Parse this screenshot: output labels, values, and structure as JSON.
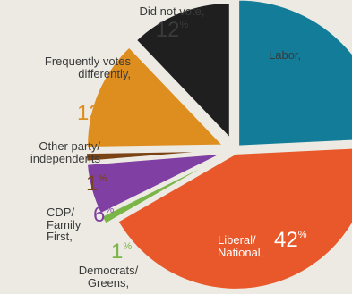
{
  "chart_data": {
    "type": "pie",
    "title": "",
    "slices": [
      {
        "label": "Labor,",
        "value": 24,
        "pct_text": "24",
        "color": "#137d99"
      },
      {
        "label": "Liberal/ National,",
        "value": 42,
        "pct_text": "42",
        "color": "#e8582a"
      },
      {
        "label": "Democrats/ Greens,",
        "value": 1,
        "pct_text": "1",
        "color": "#7ab548"
      },
      {
        "label": "CDP/ Family First,",
        "value": 6,
        "pct_text": "6",
        "color": "#7f3fa3"
      },
      {
        "label": "Other party/ independents",
        "value": 1,
        "pct_text": "1",
        "color": "#7a4315"
      },
      {
        "label": "Frequently votes differently,",
        "value": 13,
        "pct_text": "13",
        "color": "#de8e1f"
      },
      {
        "label": "Did not vote,",
        "value": 12,
        "pct_text": "12",
        "color": "#1f1f1f"
      }
    ],
    "percent_symbol": "%"
  }
}
